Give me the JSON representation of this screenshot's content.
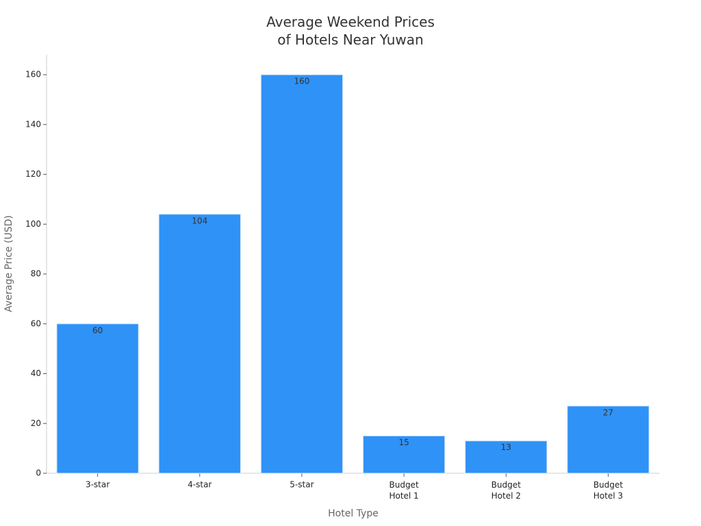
{
  "chart_data": {
    "type": "bar",
    "title": "Average Weekend Prices\nof Hotels Near Yuwan",
    "x_label": "Hotel Type",
    "y_label": "Average Price (USD)",
    "categories": [
      "3-star",
      "4-star",
      "5-star",
      "Budget\nHotel 1",
      "Budget\nHotel 2",
      "Budget\nHotel 3"
    ],
    "values": [
      60,
      104,
      160,
      15,
      13,
      27
    ],
    "color": "#2e92f7",
    "ylim": [
      0,
      168
    ],
    "yticks": [
      0,
      20,
      40,
      60,
      80,
      100,
      120,
      140,
      160
    ],
    "grid": false
  }
}
